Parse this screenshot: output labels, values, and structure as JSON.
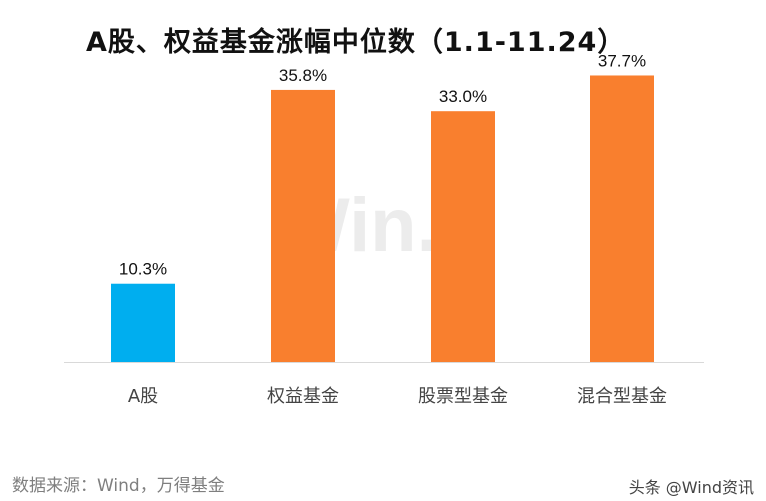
{
  "chart_data": {
    "type": "bar",
    "title": "A股、权益基金涨幅中位数（1.1-11.24）",
    "categories": [
      "A股",
      "权益基金",
      "股票型基金",
      "混合型基金"
    ],
    "values": [
      10.3,
      35.8,
      33.0,
      37.7
    ],
    "value_labels": [
      "10.3%",
      "35.8%",
      "33.0%",
      "37.7%"
    ],
    "bar_colors": [
      "#00AEEF",
      "#F97F2E",
      "#F97F2E",
      "#F97F2E"
    ],
    "ylim": [
      0,
      40
    ],
    "grid": false,
    "legend": "none"
  },
  "source_note": "数据来源：Wind，万得基金",
  "credit": "头条 @Wind资讯",
  "watermark": "Win.d"
}
